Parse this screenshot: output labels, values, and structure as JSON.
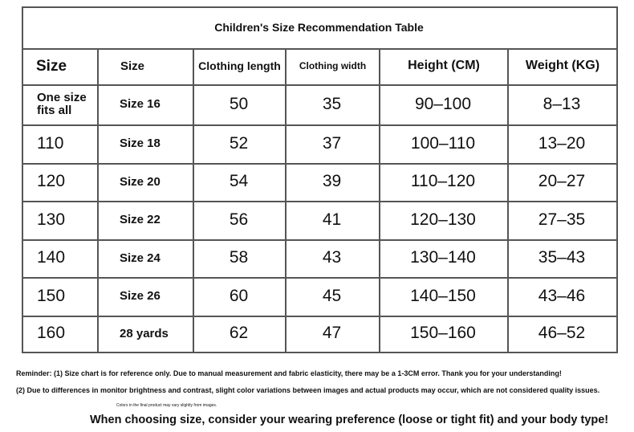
{
  "table": {
    "title": "Children's Size Recommendation Table",
    "header": [
      "Size",
      "Size",
      "Clothing length",
      "Clothing width",
      "Height (CM)",
      "Weight (KG)"
    ],
    "rows": [
      [
        "One size fits all",
        "Size 16",
        "50",
        "35",
        "90–100",
        "8–13"
      ],
      [
        "110",
        "Size 18",
        "52",
        "37",
        "100–110",
        "13–20"
      ],
      [
        "120",
        "Size 20",
        "54",
        "39",
        "110–120",
        "20–27"
      ],
      [
        "130",
        "Size 22",
        "56",
        "41",
        "120–130",
        "27–35"
      ],
      [
        "140",
        "Size 24",
        "58",
        "43",
        "130–140",
        "35–43"
      ],
      [
        "150",
        "Size 26",
        "60",
        "45",
        "140–150",
        "43–46"
      ],
      [
        "160",
        "28 yards",
        "62",
        "47",
        "150–160",
        "46–52"
      ]
    ]
  },
  "notes": [
    "Reminder: (1) Size chart is for reference only. Due to manual measurement and fabric elasticity, there may be a 1-3CM error. Thank you for your understanding!",
    "(2) Due to differences in monitor brightness and contrast, slight color variations between images and actual products may occur, which are not considered quality issues.",
    "Colors in the final product may vary slightly from images.",
    "When choosing size, consider your wearing preference (loose or tight fit) and your body type!"
  ]
}
